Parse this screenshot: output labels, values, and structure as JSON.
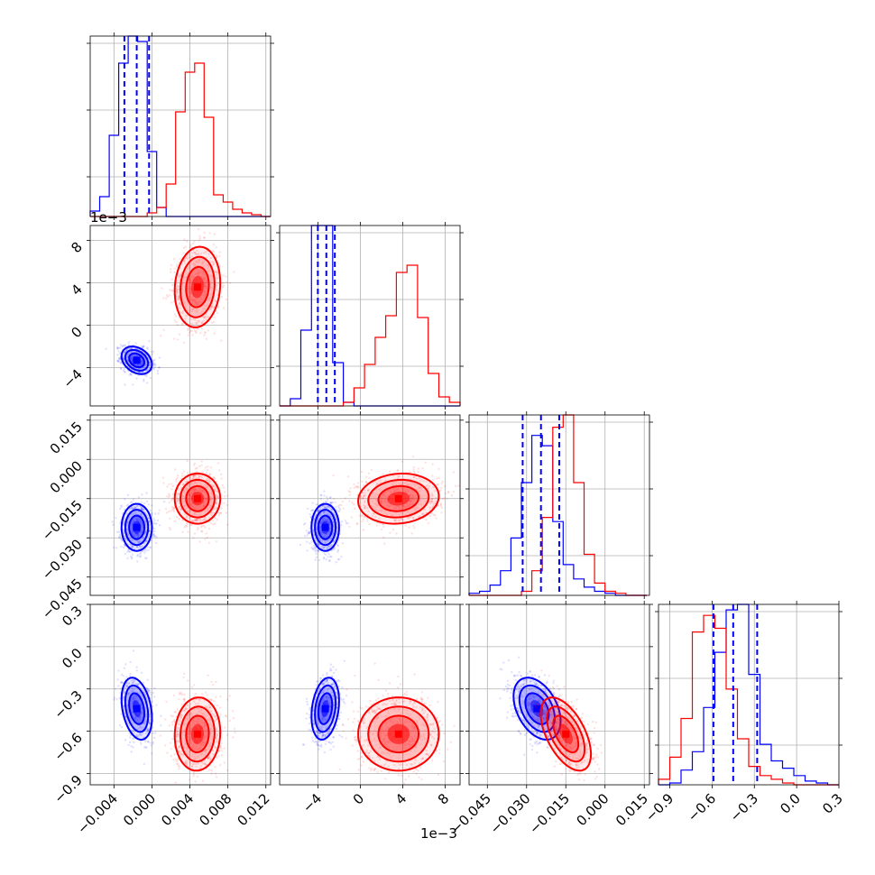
{
  "chart_data": {
    "type": "corner",
    "series": [
      {
        "name": "",
        "color": "#0000ff"
      },
      {
        "name": "",
        "color": "#ff0000"
      }
    ],
    "parameters": [
      {
        "range": [
          -0.0065,
          0.0125
        ],
        "ticks": [
          -0.004,
          0.0,
          0.004,
          0.008,
          0.012
        ],
        "tick_labels": [
          "−0.004",
          "0.000",
          "0.004",
          "0.008",
          "0.012"
        ]
      },
      {
        "range": [
          -7.6,
          9.4
        ],
        "ticks": [
          -4,
          0,
          4,
          8
        ],
        "tick_labels": [
          "−4",
          "0",
          "4",
          "8"
        ],
        "offset_label": "1e−3"
      },
      {
        "range": [
          -0.052,
          0.017
        ],
        "ticks": [
          -0.045,
          -0.03,
          -0.015,
          0.0,
          0.015
        ],
        "tick_labels": [
          "−0.045",
          "−0.030",
          "−0.015",
          "0.000",
          "0.015"
        ]
      },
      {
        "range": [
          -0.98,
          0.3
        ],
        "ticks": [
          -0.9,
          -0.6,
          -0.3,
          0.0,
          0.3
        ],
        "tick_labels": [
          "−0.9",
          "−0.6",
          "−0.3",
          "0.0",
          "0.3"
        ]
      }
    ],
    "offset_labels": {
      "top": "1e−3",
      "bottom": "1e−3"
    },
    "blue": {
      "mean": [
        -0.0016,
        -3.3,
        -0.026,
        -0.44
      ],
      "std": [
        0.0008,
        0.65,
        0.0045,
        0.11
      ],
      "corr": [
        [
          1,
          -0.3,
          0,
          -0.3
        ],
        [
          -0.3,
          1,
          0,
          0.25
        ],
        [
          0,
          0,
          1,
          -0.4
        ],
        [
          -0.3,
          0.25,
          -0.4,
          1
        ]
      ],
      "quantile_lines": [
        [
          -0.0029,
          -0.0016,
          -0.0003
        ],
        [
          -4.0,
          -3.2,
          -2.4
        ],
        [
          -0.0315,
          -0.0245,
          -0.0175
        ],
        [
          -0.59,
          -0.45,
          -0.28
        ]
      ]
    },
    "red": {
      "mean": [
        0.0048,
        3.6,
        -0.015,
        -0.62
      ],
      "std": [
        0.0012,
        1.9,
        0.0048,
        0.13
      ],
      "corr": [
        [
          1,
          0.1,
          0,
          0.05
        ],
        [
          0.1,
          1,
          0.1,
          0
        ],
        [
          0,
          0.1,
          1,
          -0.55
        ],
        [
          0.05,
          0,
          -0.55,
          1
        ]
      ]
    },
    "histograms": [
      {
        "edges": [
          -0.0065,
          -0.0055,
          -0.0045,
          -0.0035,
          -0.0025,
          -0.0015,
          -0.0005,
          0.0005,
          0.0015,
          0.0025,
          0.0035,
          0.0045,
          0.0055,
          0.0065,
          0.0075,
          0.0085,
          0.0095,
          0.0105,
          0.0115,
          0.0125
        ],
        "blue": [
          3,
          11,
          45,
          85,
          100,
          97,
          36,
          5,
          0,
          0,
          0,
          0,
          0,
          0,
          0,
          0,
          0,
          0,
          0
        ],
        "red": [
          0,
          0,
          0,
          0,
          0,
          0,
          2,
          5,
          18,
          58,
          80,
          85,
          55,
          12,
          8,
          4,
          2,
          1,
          0
        ]
      },
      {
        "edges": [
          -7.6,
          -6.6,
          -5.6,
          -4.6,
          -3.6,
          -2.6,
          -1.6,
          -0.6,
          0.4,
          1.4,
          2.4,
          3.4,
          4.4,
          5.4,
          6.4,
          7.4,
          8.4,
          9.4
        ],
        "blue": [
          0,
          4,
          42,
          100,
          100,
          24,
          2,
          0,
          0,
          0,
          0,
          0,
          0,
          0,
          0,
          0,
          0
        ],
        "red": [
          0,
          0,
          0,
          0,
          0,
          0,
          2,
          10,
          23,
          38,
          50,
          74,
          78,
          49,
          18,
          5,
          2
        ]
      },
      {
        "edges": [
          -0.052,
          -0.048,
          -0.044,
          -0.04,
          -0.036,
          -0.032,
          -0.028,
          -0.024,
          -0.02,
          -0.016,
          -0.012,
          -0.008,
          -0.004,
          0.0,
          0.004,
          0.008,
          0.012,
          0.016
        ],
        "blue": [
          1,
          2,
          5,
          12,
          28,
          55,
          78,
          73,
          36,
          15,
          8,
          4,
          2,
          1,
          0,
          0,
          0
        ],
        "red": [
          0,
          0,
          0,
          0,
          0,
          2,
          12,
          38,
          82,
          88,
          55,
          20,
          6,
          2,
          1,
          0,
          0
        ]
      },
      {
        "edges": [
          -0.98,
          -0.9,
          -0.82,
          -0.74,
          -0.66,
          -0.58,
          -0.5,
          -0.42,
          -0.34,
          -0.26,
          -0.18,
          -0.1,
          -0.02,
          0.06,
          0.14,
          0.22,
          0.3
        ],
        "blue": [
          0,
          1,
          8,
          18,
          42,
          72,
          95,
          98,
          60,
          22,
          13,
          9,
          5,
          2,
          1,
          0
        ],
        "red": [
          3,
          15,
          36,
          83,
          92,
          85,
          52,
          25,
          10,
          5,
          3,
          1,
          0,
          0,
          0,
          0
        ]
      }
    ]
  }
}
